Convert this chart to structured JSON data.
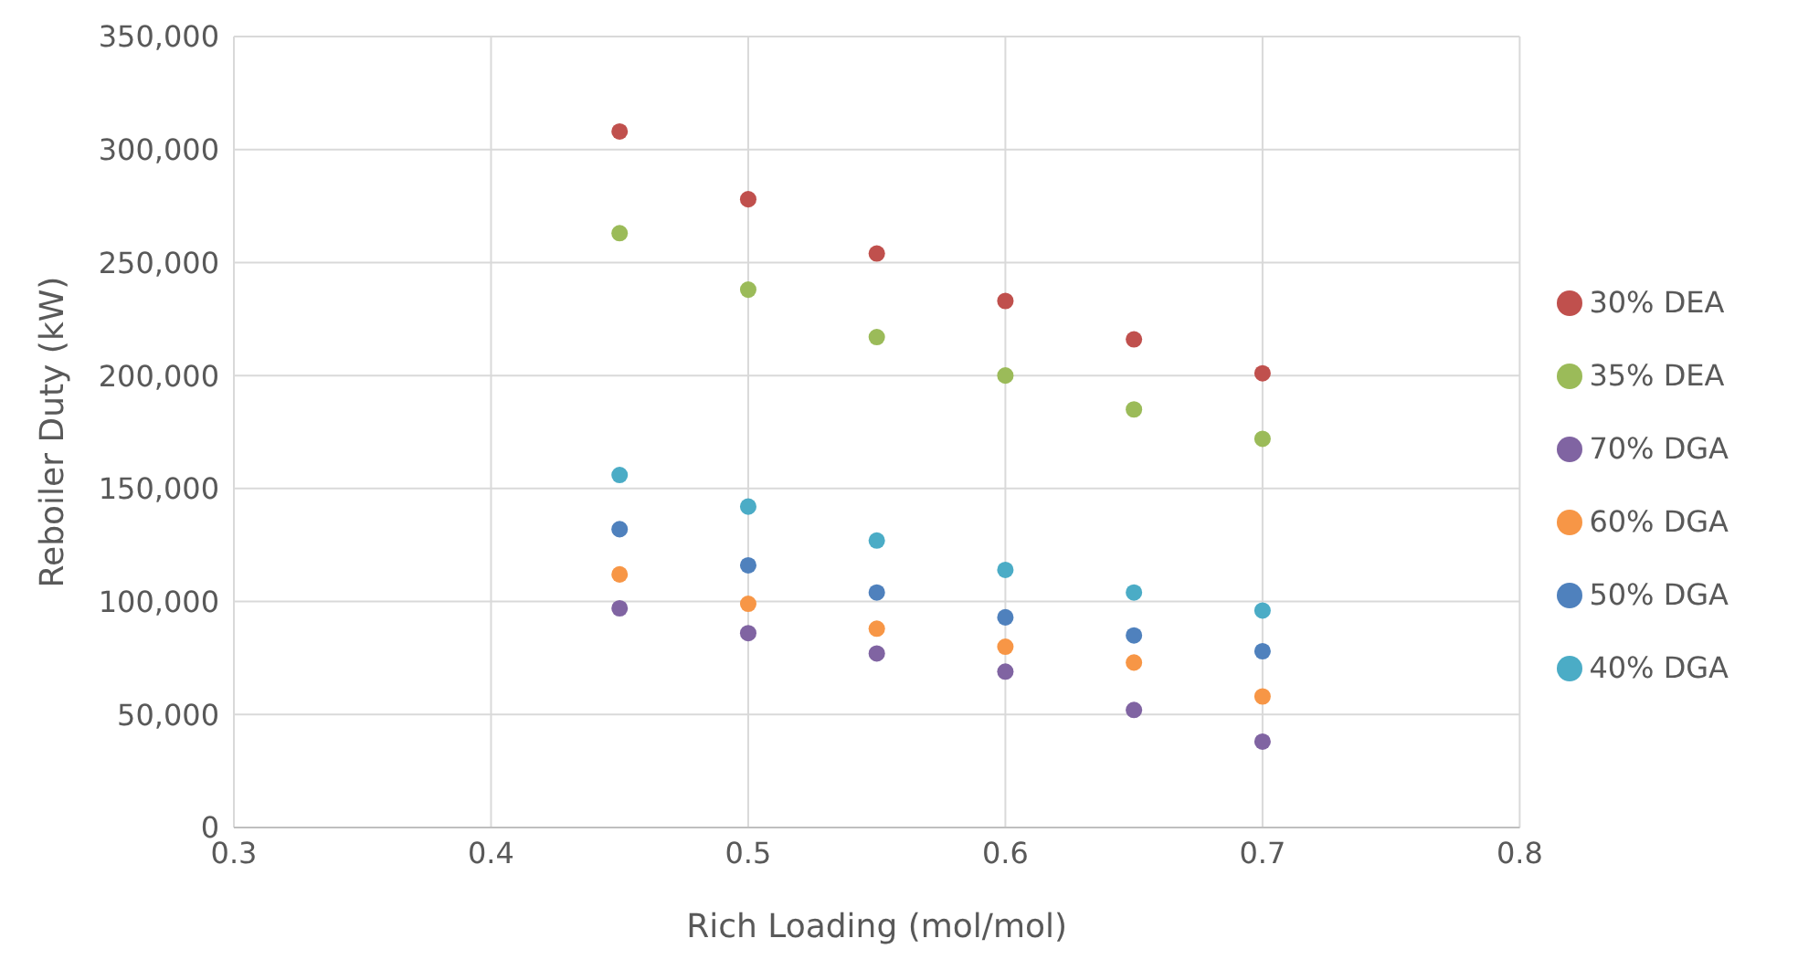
{
  "chart_data": {
    "type": "scatter",
    "xlabel": "Rich Loading (mol/mol)",
    "ylabel": "Reboiler Duty (kW)",
    "x": [
      0.45,
      0.5,
      0.55,
      0.6,
      0.65,
      0.7
    ],
    "series": [
      {
        "name": "30% DEA",
        "color": "#c0504d",
        "values": [
          308000,
          278000,
          254000,
          233000,
          216000,
          201000
        ]
      },
      {
        "name": "35% DEA",
        "color": "#9bbb59",
        "values": [
          263000,
          238000,
          217000,
          200000,
          185000,
          172000
        ]
      },
      {
        "name": "70% DGA",
        "color": "#8064a2",
        "values": [
          97000,
          86000,
          77000,
          69000,
          52000,
          38000
        ]
      },
      {
        "name": "60% DGA",
        "color": "#f79646",
        "values": [
          112000,
          99000,
          88000,
          80000,
          73000,
          58000
        ]
      },
      {
        "name": "50% DGA",
        "color": "#4f81bd",
        "values": [
          132000,
          116000,
          104000,
          93000,
          85000,
          78000
        ]
      },
      {
        "name": "40% DGA",
        "color": "#4bacc6",
        "values": [
          156000,
          142000,
          127000,
          114000,
          104000,
          96000
        ]
      }
    ],
    "xlim": [
      0.3,
      0.8
    ],
    "xticks": [
      0.3,
      0.4,
      0.5,
      0.6,
      0.7,
      0.8
    ],
    "ylim": [
      0,
      350000
    ],
    "yticks": [
      0,
      {
        "value": 50000,
        "label": "50,000"
      },
      {
        "value": 100000,
        "label": "100,000"
      },
      {
        "value": 150000,
        "label": "150,000"
      },
      {
        "value": 200000,
        "label": "200,000"
      },
      {
        "value": 250000,
        "label": "250,000"
      },
      {
        "value": 300000,
        "label": "300,000"
      },
      {
        "value": 350000,
        "label": "350,000"
      }
    ],
    "grid": true,
    "legend": "right",
    "marker": "circle"
  }
}
